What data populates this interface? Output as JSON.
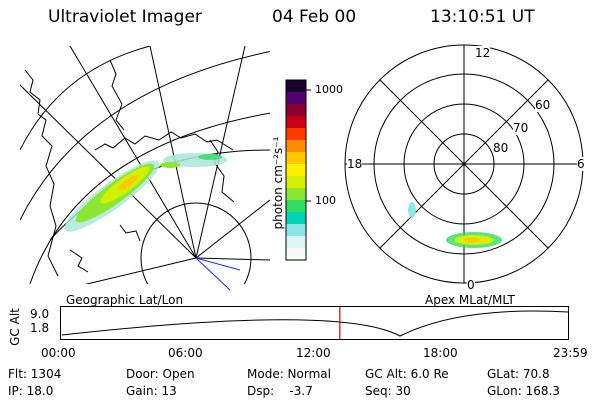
{
  "header": {
    "instrument": "Ultraviolet Imager",
    "date": "04 Feb 00",
    "time": "13:10:51 UT"
  },
  "panels": {
    "left_label": "Geographic Lat/Lon",
    "right_label": "Apex MLat/MLT"
  },
  "colorbar": {
    "unit_label": "photon cm⁻²s⁻¹",
    "ticks": [
      "1000",
      "100"
    ],
    "colors": [
      "#1a0030",
      "#50006a",
      "#8a0030",
      "#c80018",
      "#ff3c00",
      "#ff8c00",
      "#ffc800",
      "#fff000",
      "#d2f000",
      "#8ce632",
      "#32dc64",
      "#00d2b4",
      "#8ce6e6",
      "#dcf5f5",
      "#f4faf4"
    ]
  },
  "polar": {
    "mlt_labels": [
      "12",
      "18",
      "6",
      "0"
    ],
    "lat_labels": [
      "60",
      "70",
      "80"
    ]
  },
  "timeline": {
    "y_label": "GC Alt",
    "y_ticks": [
      "9.0",
      "1.8"
    ],
    "x_ticks": [
      "00:00",
      "06:00",
      "12:00",
      "18:00",
      "23:59"
    ],
    "current_time_fraction": 0.55,
    "marker_color": "#d00000"
  },
  "info": {
    "flt": "Flt: 1304",
    "ip": "IP: 18.0",
    "door": "Door: Open",
    "gain": "Gain: 13",
    "mode": "Mode: Normal",
    "dsp": "Dsp:    -3.7",
    "gcalt": "GC Alt: 6.0 Re",
    "seq": "Seq: 30",
    "glat": "GLat: 70.8",
    "glon": "GLon: 168.3"
  }
}
